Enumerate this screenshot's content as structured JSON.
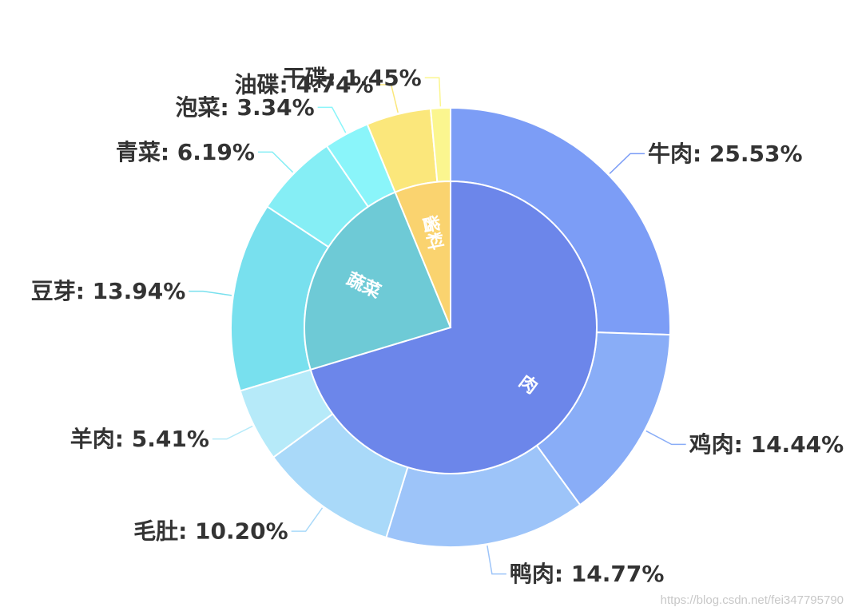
{
  "chart_data": {
    "type": "pie",
    "variant": "nested-donut",
    "inner_ring": [
      {
        "name": "肉",
        "value": 70.35,
        "color": "#6C86EA"
      },
      {
        "name": "蔬菜",
        "value": 23.47,
        "color": "#6ECAD6"
      },
      {
        "name": "酱料",
        "value": 6.19,
        "color": "#FAD36F"
      }
    ],
    "outer_ring": [
      {
        "name": "牛肉",
        "value": 25.53,
        "label": "牛肉: 25.53%",
        "color": "#7C9DF6",
        "group": "肉"
      },
      {
        "name": "鸡肉",
        "value": 14.44,
        "label": "鸡肉: 14.44%",
        "color": "#89ADF7",
        "group": "肉"
      },
      {
        "name": "鸭肉",
        "value": 14.77,
        "label": "鸭肉: 14.77%",
        "color": "#9DC4F9",
        "group": "肉"
      },
      {
        "name": "毛肚",
        "value": 10.2,
        "label": "毛肚: 10.20%",
        "color": "#A9D9F9",
        "group": "肉"
      },
      {
        "name": "羊肉",
        "value": 5.41,
        "label": "羊肉: 5.41%",
        "color": "#B6EAF9",
        "group": "肉"
      },
      {
        "name": "豆芽",
        "value": 13.94,
        "label": "豆芽: 13.94%",
        "color": "#78E0EE",
        "group": "蔬菜"
      },
      {
        "name": "青菜",
        "value": 6.19,
        "label": "青菜: 6.19%",
        "color": "#85EEF5",
        "group": "蔬菜"
      },
      {
        "name": "泡菜",
        "value": 3.34,
        "label": "泡菜: 3.34%",
        "color": "#8AF5FA",
        "group": "蔬菜"
      },
      {
        "name": "油碟",
        "value": 4.74,
        "label": "油碟: 4.74%",
        "color": "#FBE77B",
        "group": "酱料"
      },
      {
        "name": "干碟",
        "value": 1.45,
        "label": "干碟: 1.45%",
        "color": "#FBF68F",
        "group": "酱料"
      }
    ]
  },
  "watermark": "https://blog.csdn.net/fei347795790"
}
